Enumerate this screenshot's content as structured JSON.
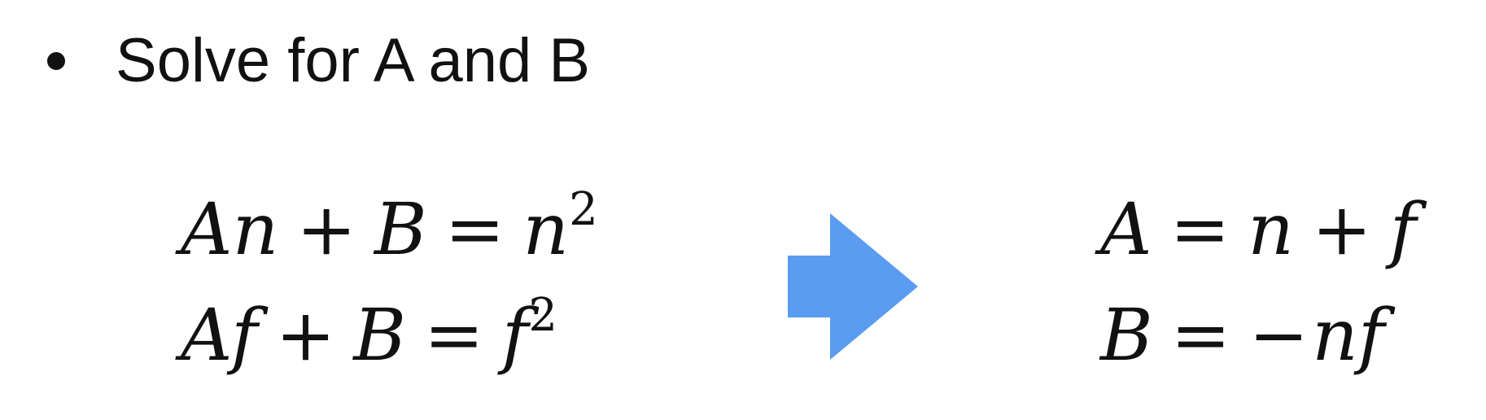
{
  "slide": {
    "bullet": {
      "text": "Solve for A and B"
    },
    "left_equations": [
      {
        "lhs_var1": "A",
        "lhs_var2": "n",
        "plus": "+",
        "lhs_var3": "B",
        "equals": "=",
        "rhs_var": "n",
        "rhs_exp": "2"
      },
      {
        "lhs_var1": "A",
        "lhs_var2": "f",
        "plus": "+",
        "lhs_var3": "B",
        "equals": "=",
        "rhs_var": "f",
        "rhs_exp": "2"
      }
    ],
    "arrow": {
      "icon": "right-arrow-icon",
      "color": "#5a9cf0"
    },
    "right_equations": [
      {
        "lhs": "A",
        "equals": "=",
        "term1": "n",
        "plus": "+",
        "term2": "f"
      },
      {
        "lhs": "B",
        "equals": "=",
        "minus": "−",
        "term1": "n",
        "term2": "f"
      }
    ]
  }
}
